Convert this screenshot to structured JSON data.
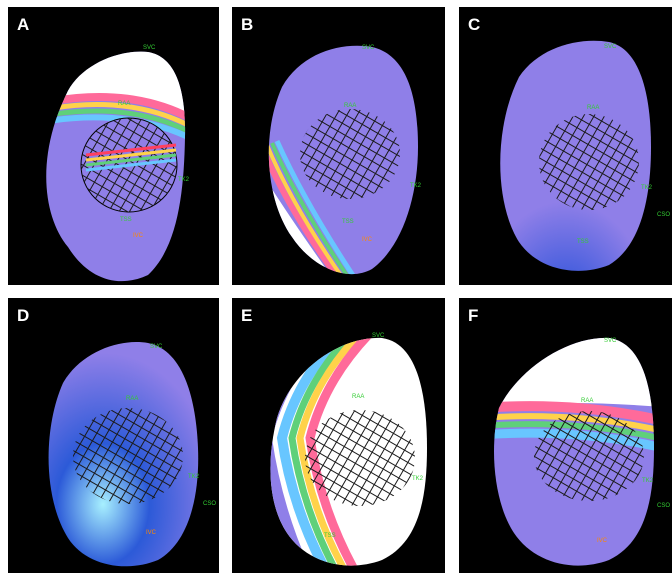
{
  "figure": {
    "panels": [
      {
        "id": "A",
        "letter": "A",
        "pattern": "rainbow-upper"
      },
      {
        "id": "B",
        "letter": "B",
        "pattern": "rainbow-left"
      },
      {
        "id": "C",
        "letter": "C",
        "pattern": "blue-bottom"
      },
      {
        "id": "D",
        "letter": "D",
        "pattern": "blue-center"
      },
      {
        "id": "E",
        "letter": "E",
        "pattern": "rainbow-large"
      },
      {
        "id": "F",
        "letter": "F",
        "pattern": "rainbow-mid"
      }
    ],
    "labels": {
      "svc": "SVC",
      "raa": "RAA",
      "his": "HIS",
      "tk": "TK2",
      "cso": "CSO",
      "ivc": "IVC",
      "ostium": "TSS"
    },
    "colors": {
      "background": "#000000",
      "atrium": "#8f7fe8",
      "grid": "#1a1a1a",
      "label": "#33cc33",
      "label_warm": "#ff8800"
    }
  }
}
